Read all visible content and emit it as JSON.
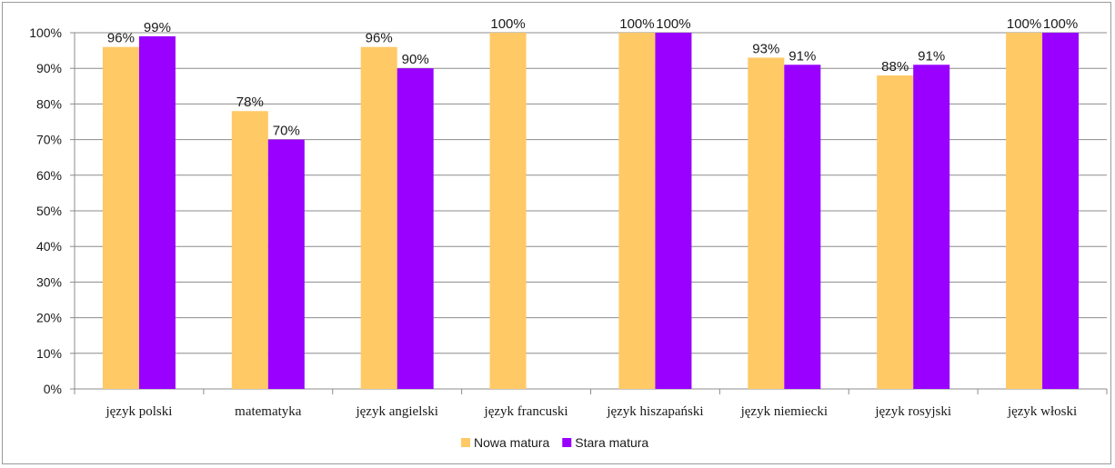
{
  "chart_data": {
    "type": "bar",
    "categories": [
      "język polski",
      "matematyka",
      "język angielski",
      "język francuski",
      "język hiszapański",
      "język niemiecki",
      "język rosyjski",
      "język włoski"
    ],
    "series": [
      {
        "name": "Nowa matura",
        "color": "#FFC966",
        "values": [
          96,
          78,
          96,
          100,
          100,
          93,
          88,
          100
        ],
        "labels": [
          "96%",
          "78%",
          "96%",
          "100%",
          "100%",
          "93%",
          "88%",
          "100%"
        ]
      },
      {
        "name": "Stara matura",
        "color": "#9900FF",
        "values": [
          99,
          70,
          90,
          null,
          100,
          91,
          91,
          100
        ],
        "labels": [
          "99%",
          "70%",
          "90%",
          "",
          "100%",
          "91%",
          "91%",
          "100%"
        ]
      }
    ],
    "y_ticks": [
      "0%",
      "10%",
      "20%",
      "30%",
      "40%",
      "50%",
      "60%",
      "70%",
      "80%",
      "90%",
      "100%"
    ],
    "ylim": [
      0,
      100
    ],
    "grid": true,
    "legend_position": "bottom",
    "title": "",
    "xlabel": "",
    "ylabel": ""
  }
}
